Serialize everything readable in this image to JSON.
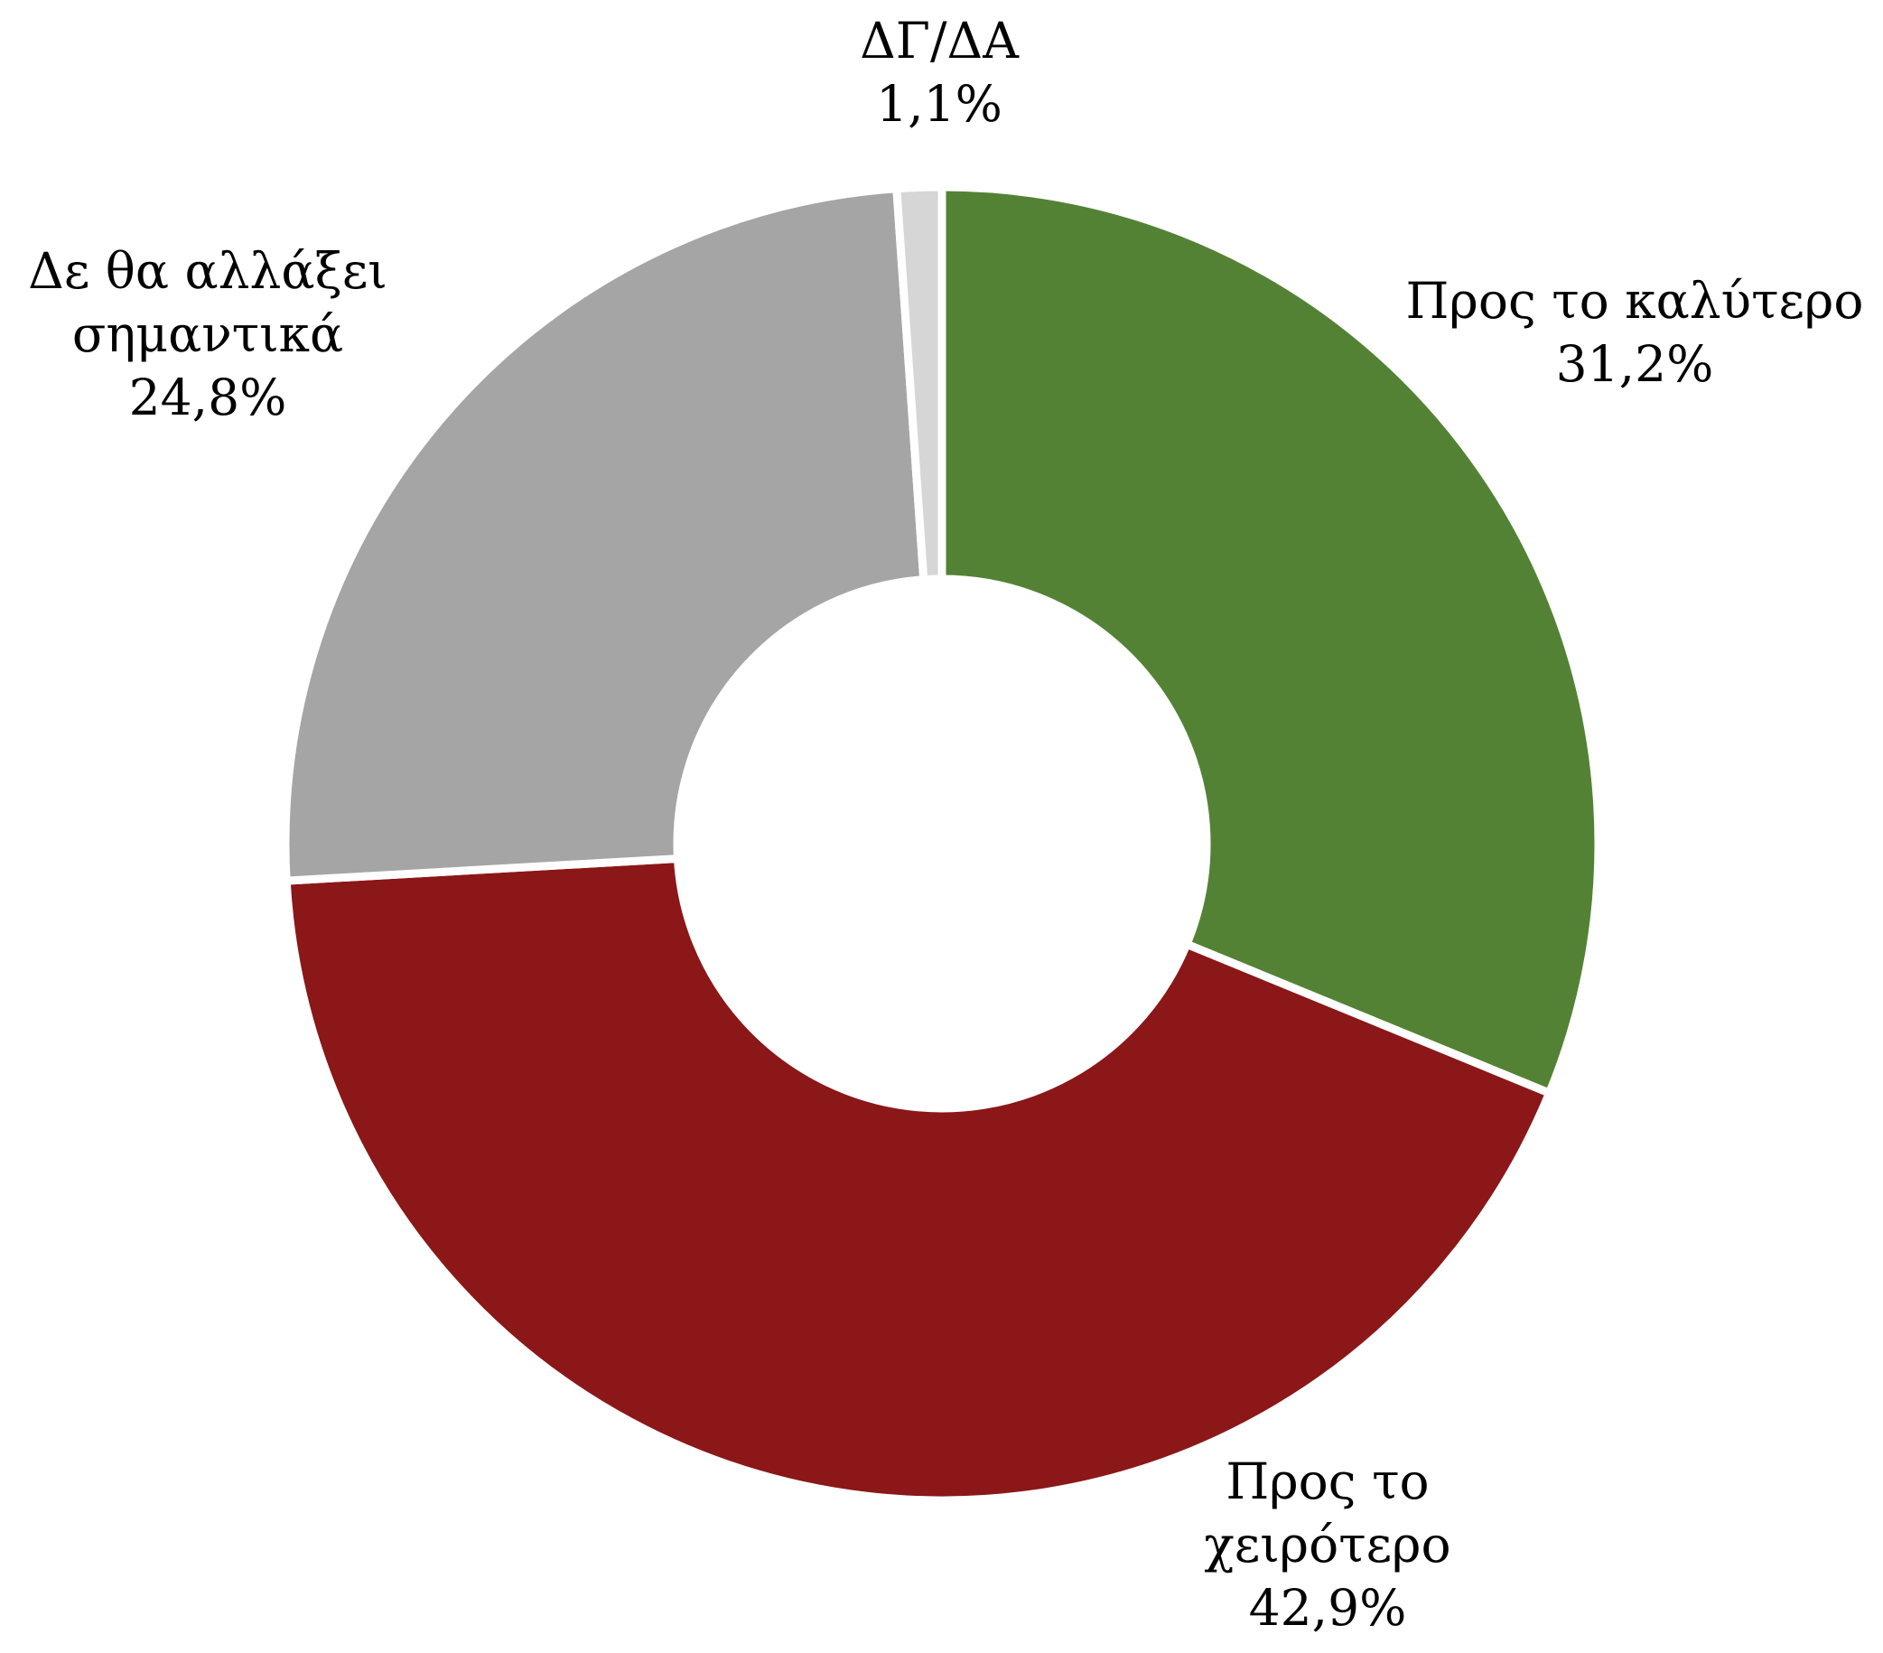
{
  "chart_data": {
    "type": "pie",
    "variant": "donut",
    "start": "12 o'clock, clockwise",
    "slices": [
      {
        "label": "Προς το καλύτερο",
        "label_lines": [
          "Προς το καλύτερο"
        ],
        "value": 31.2,
        "value_text": "31,2%",
        "color": "#548235"
      },
      {
        "label": "Προς το χειρότερο",
        "label_lines": [
          "Προς το",
          "χειρότερο"
        ],
        "value": 42.9,
        "value_text": "42,9%",
        "color": "#8B1718"
      },
      {
        "label": "Δε θα αλλάξει σημαντικά",
        "label_lines": [
          "Δε θα αλλάξει",
          "σημαντικά"
        ],
        "value": 24.8,
        "value_text": "24,8%",
        "color": "#A5A5A5"
      },
      {
        "label": "ΔΓ/ΔΑ",
        "label_lines": [
          "ΔΓ/ΔΑ"
        ],
        "value": 1.1,
        "value_text": "1,1%",
        "color": "#D6D6D6"
      }
    ]
  }
}
